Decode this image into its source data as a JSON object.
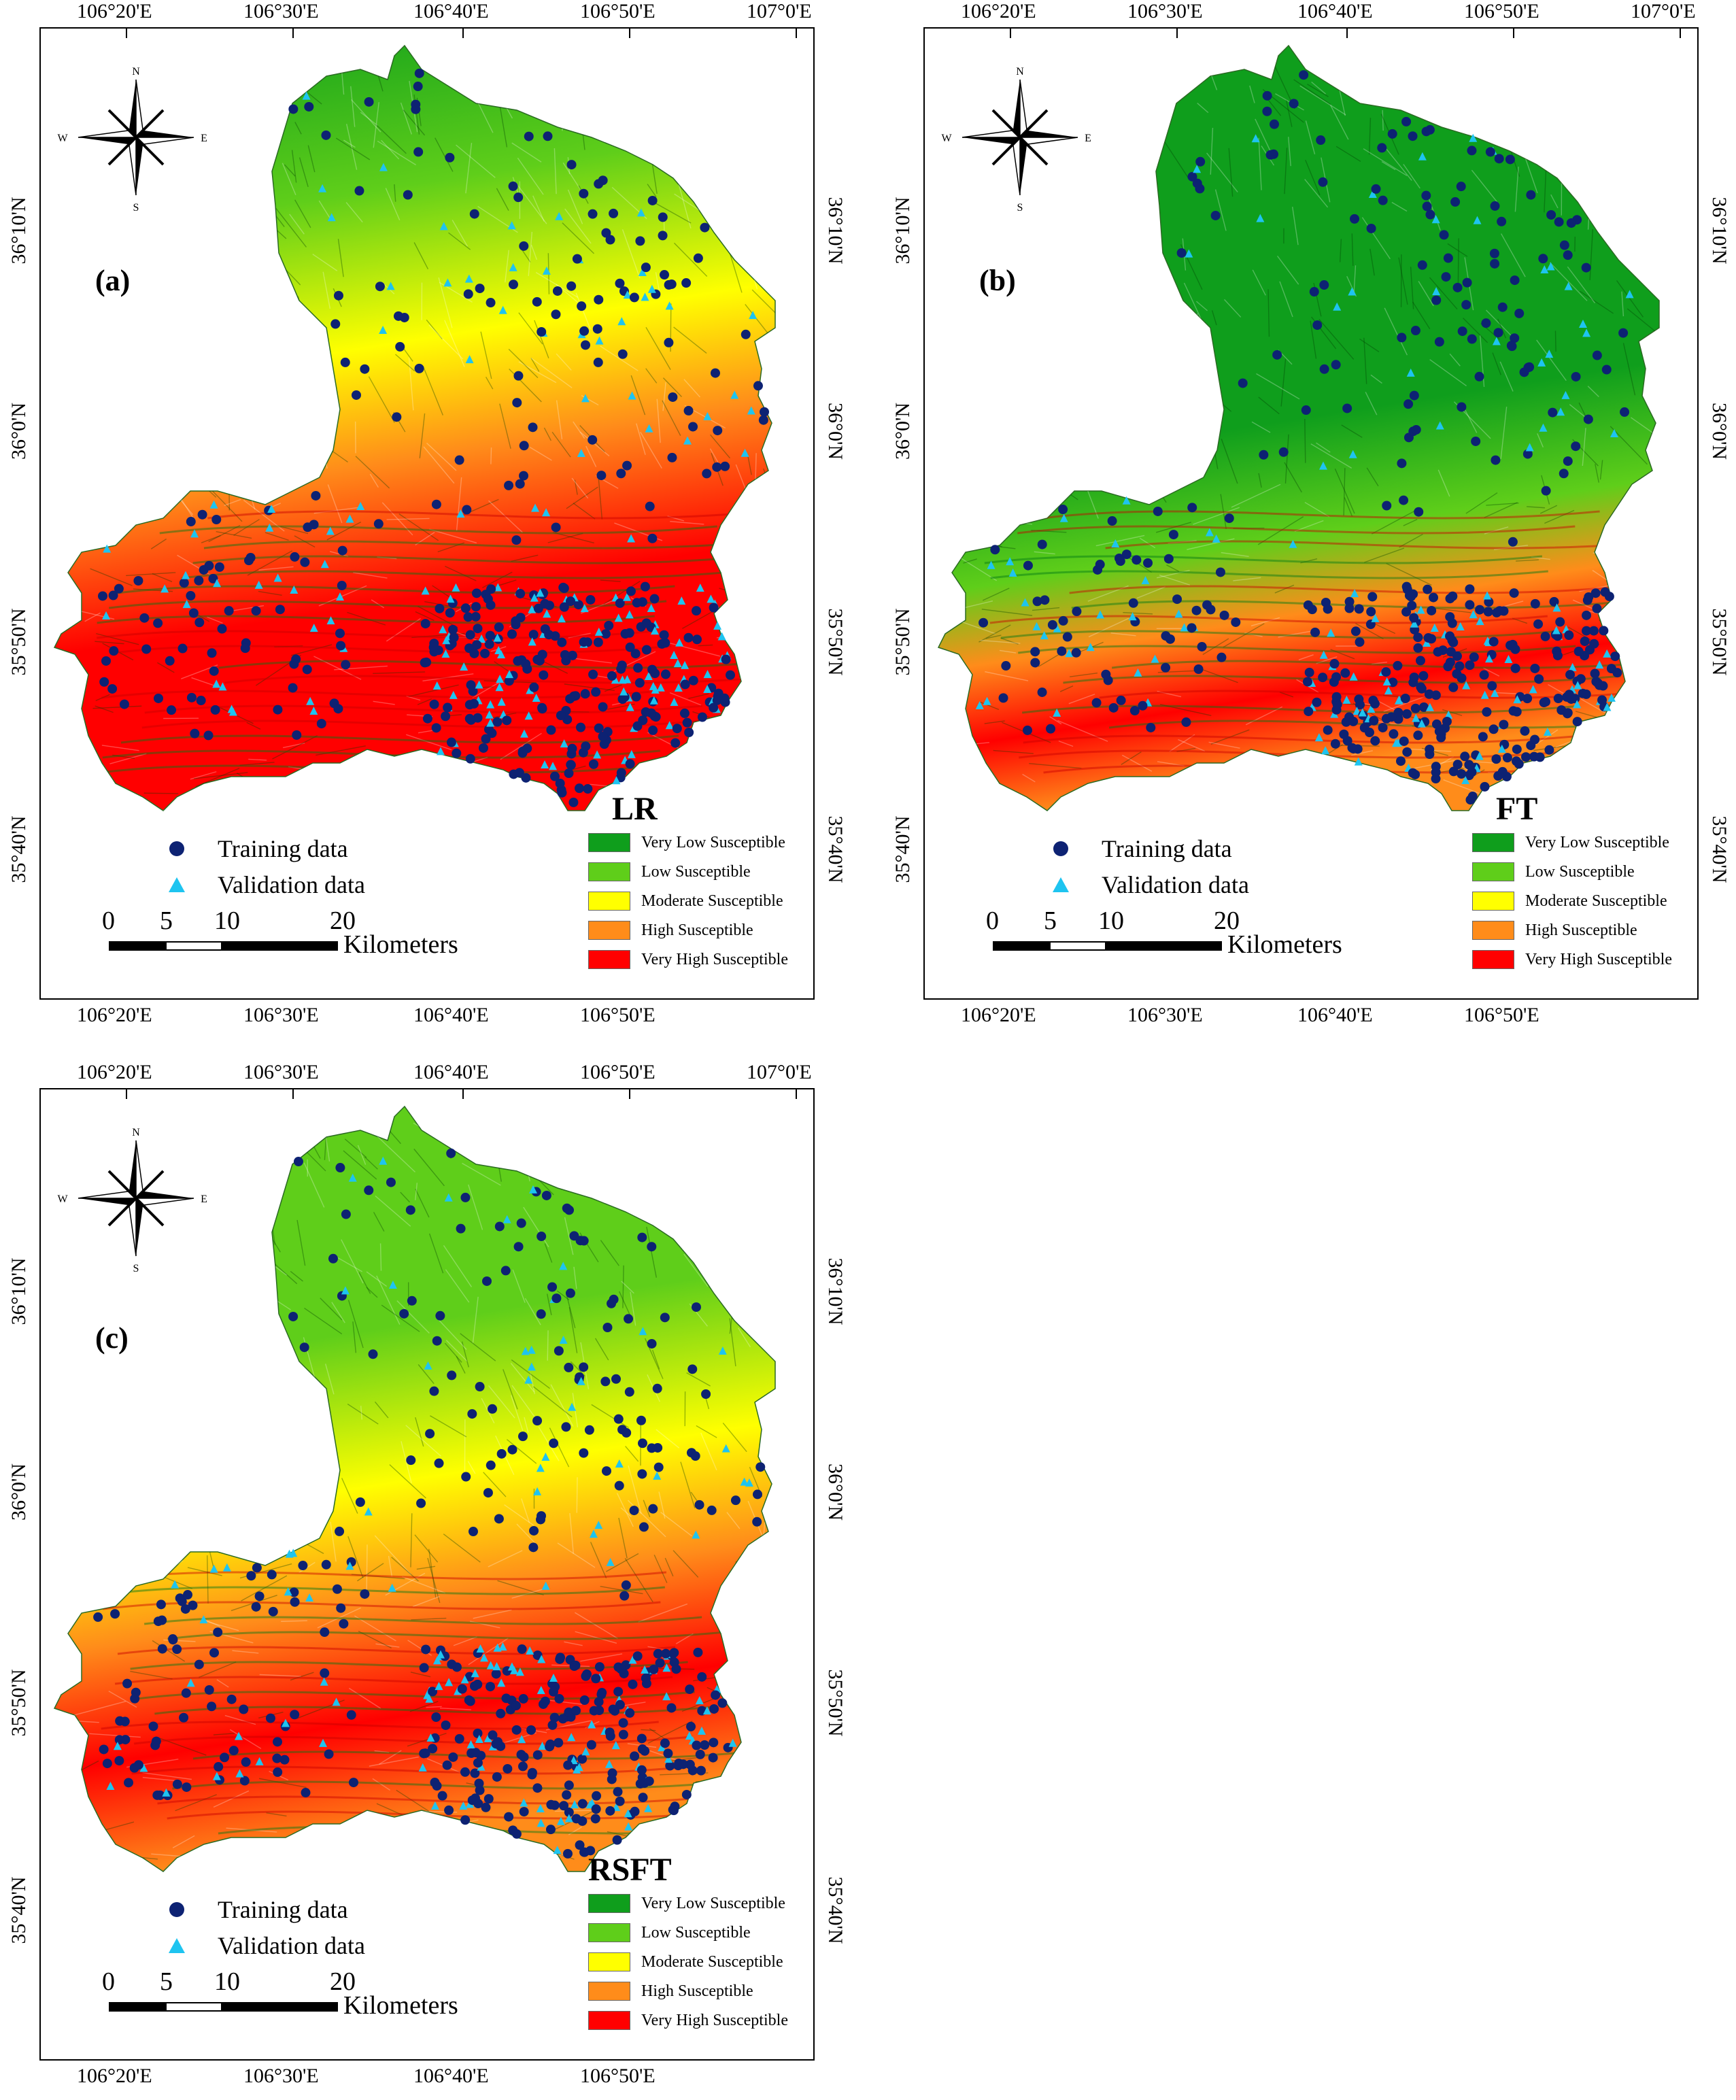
{
  "map": {
    "lon_labels": [
      "106°20'E",
      "106°30'E",
      "106°40'E",
      "106°50'E",
      "107°0'E"
    ],
    "lat_labels": [
      "36°10'N",
      "36°0'N",
      "35°50'N",
      "35°40'N"
    ],
    "panels": [
      {
        "id": "a",
        "label": "(a)",
        "title": "LR"
      },
      {
        "id": "b",
        "label": "(b)",
        "title": "FT"
      },
      {
        "id": "c",
        "label": "(c)",
        "title": "RSFT"
      }
    ],
    "legend_classes": [
      {
        "label": "Very Low Susceptible",
        "color": "#0f9e1c"
      },
      {
        "label": "Low Susceptible",
        "color": "#5fce1a"
      },
      {
        "label": "Moderate Susceptible",
        "color": "#ffff00"
      },
      {
        "label": "High Susceptible",
        "color": "#ff8c1a"
      },
      {
        "label": "Very High Susceptible",
        "color": "#ff0000"
      }
    ],
    "points_legend": {
      "training": {
        "label": "Training data",
        "color": "#0d2273"
      },
      "validation": {
        "label": "Validation data",
        "color": "#1ec4f0"
      }
    },
    "scale": {
      "ticks": [
        "0",
        "5",
        "10",
        "20"
      ],
      "unit": "Kilometers"
    },
    "compass": {
      "n": "N",
      "s": "S",
      "e": "E",
      "w": "W"
    }
  }
}
